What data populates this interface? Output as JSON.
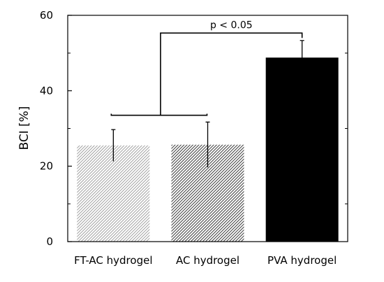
{
  "chart_data": {
    "type": "bar",
    "categories": [
      "FT-AC hydrogel",
      "AC hydrogel",
      "PVA hydrogel"
    ],
    "values": [
      25.5,
      25.7,
      48.8
    ],
    "errors": [
      4.2,
      6.0,
      4.5
    ],
    "bar_styles": [
      "light-hatch",
      "dark-hatch",
      "solid"
    ],
    "colors": {
      "light-hatch": "#8a8a8a",
      "dark-hatch": "#404040",
      "solid": "#000000"
    },
    "ylabel": "BCI [%]",
    "xlabel": "",
    "title": "",
    "ylim": [
      0,
      60
    ],
    "yticks": [
      0,
      20,
      40,
      60
    ],
    "grid": false,
    "annotation": {
      "text": "p < 0.05",
      "group_bracket_y": 33.5,
      "group_bracket_tick_height": 0.4,
      "connector_top_y": 55.3
    }
  }
}
